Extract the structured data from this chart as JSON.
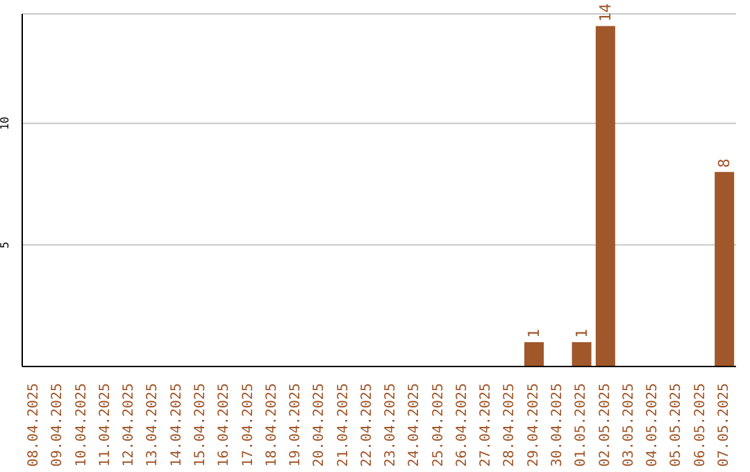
{
  "chart_data": {
    "type": "bar",
    "categories": [
      "08.04.2025",
      "09.04.2025",
      "10.04.2025",
      "11.04.2025",
      "12.04.2025",
      "13.04.2025",
      "14.04.2025",
      "15.04.2025",
      "16.04.2025",
      "17.04.2025",
      "18.04.2025",
      "19.04.2025",
      "20.04.2025",
      "21.04.2025",
      "22.04.2025",
      "23.04.2025",
      "24.04.2025",
      "25.04.2025",
      "26.04.2025",
      "27.04.2025",
      "28.04.2025",
      "29.04.2025",
      "30.04.2025",
      "01.05.2025",
      "02.05.2025",
      "03.05.2025",
      "04.05.2025",
      "05.05.2025",
      "06.05.2025",
      "07.05.2025"
    ],
    "values": [
      0,
      0,
      0,
      0,
      0,
      0,
      0,
      0,
      0,
      0,
      0,
      0,
      0,
      0,
      0,
      0,
      0,
      0,
      0,
      0,
      0,
      1,
      0,
      1,
      14,
      0,
      0,
      0,
      0,
      8
    ],
    "value_labels": [
      null,
      null,
      null,
      null,
      null,
      null,
      null,
      null,
      null,
      null,
      null,
      null,
      null,
      null,
      null,
      null,
      null,
      null,
      null,
      null,
      null,
      "1",
      null,
      "1",
      "14",
      null,
      null,
      null,
      null,
      "8"
    ],
    "color": "#a0572a",
    "ylim": [
      0,
      14.5
    ],
    "yticks": [
      5,
      10
    ],
    "grid": "y"
  }
}
